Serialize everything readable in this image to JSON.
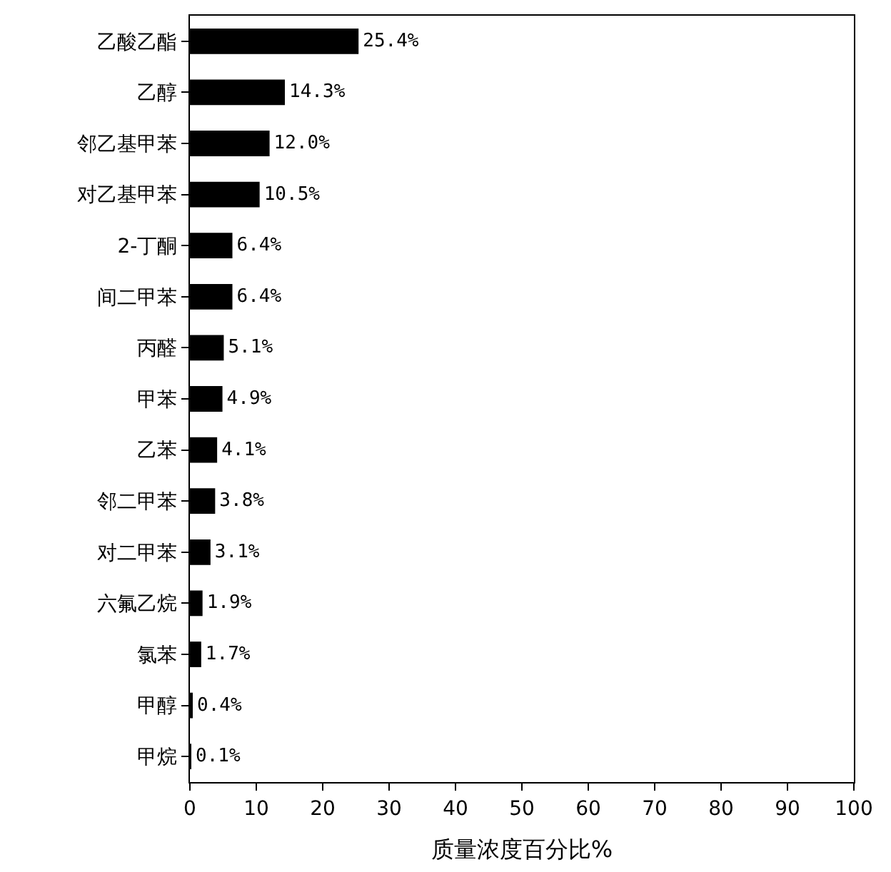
{
  "chart_data": {
    "type": "bar",
    "orientation": "horizontal",
    "xlabel": "质量浓度百分比%",
    "categories": [
      "乙酸乙酯",
      "乙醇",
      "邻乙基甲苯",
      "对乙基甲苯",
      "2-丁酮",
      "间二甲苯",
      "丙醛",
      "甲苯",
      "乙苯",
      "邻二甲苯",
      "对二甲苯",
      "六氟乙烷",
      "氯苯",
      "甲醇",
      "甲烷"
    ],
    "values": [
      25.4,
      14.3,
      12.0,
      10.5,
      6.4,
      6.4,
      5.1,
      4.9,
      4.1,
      3.8,
      3.1,
      1.9,
      1.7,
      0.4,
      0.1
    ],
    "value_labels": [
      "25.4%",
      "14.3%",
      "12.0%",
      "10.5%",
      "6.4%",
      "6.4%",
      "5.1%",
      "4.9%",
      "4.1%",
      "3.8%",
      "3.1%",
      "1.9%",
      "1.7%",
      "0.4%",
      "0.1%"
    ],
    "color": "#000000",
    "xlim": [
      0,
      100
    ],
    "xticks": [
      0,
      10,
      20,
      30,
      40,
      50,
      60,
      70,
      80,
      90,
      100
    ],
    "legend": false
  }
}
